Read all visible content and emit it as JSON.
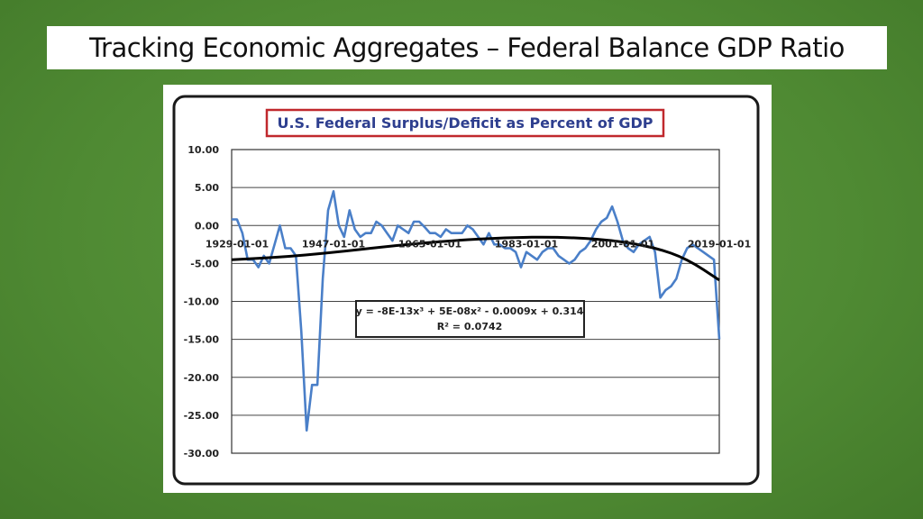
{
  "slide": {
    "title": "Tracking Economic Aggregates – Federal Balance GDP Ratio"
  },
  "colors": {
    "background": "#4f8a33",
    "series_line": "#4a7fc8",
    "trend_line": "#000000",
    "chart_title": "#2e3f8f",
    "title_border": "#c0282d"
  },
  "chart_data": {
    "type": "line",
    "title": "U.S. Federal Surplus/Deficit as Percent of GDP",
    "xlabel": "",
    "ylabel": "",
    "ylim": [
      -30,
      10
    ],
    "y_ticks": [
      "10.00",
      "5.00",
      "0.00",
      "-5.00",
      "-10.00",
      "-15.00",
      "-20.00",
      "-25.00",
      "-30.00"
    ],
    "x_range": [
      1929,
      2020
    ],
    "x_tick_labels": [
      {
        "year": 1929,
        "label": "1929-01-01"
      },
      {
        "year": 1947,
        "label": "1947-01-01"
      },
      {
        "year": 1965,
        "label": "1965-01-01"
      },
      {
        "year": 1983,
        "label": "1983-01-01"
      },
      {
        "year": 2001,
        "label": "2001-01-01"
      },
      {
        "year": 2019,
        "label": "2019-01-01"
      }
    ],
    "grid": true,
    "series": [
      {
        "years": [
          1929,
          1930,
          1931,
          1932,
          1933,
          1934,
          1935,
          1936,
          1937,
          1938,
          1939,
          1940,
          1941,
          1942,
          1943,
          1944,
          1945,
          1946,
          1947,
          1948,
          1949,
          1950,
          1951,
          1952,
          1953,
          1954,
          1955,
          1956,
          1957,
          1958,
          1959,
          1960,
          1961,
          1962,
          1963,
          1964,
          1965,
          1966,
          1967,
          1968,
          1969,
          1970,
          1971,
          1972,
          1973,
          1974,
          1975,
          1976,
          1977,
          1978,
          1979,
          1980,
          1981,
          1982,
          1983,
          1984,
          1985,
          1986,
          1987,
          1988,
          1989,
          1990,
          1991,
          1992,
          1993,
          1994,
          1995,
          1996,
          1997,
          1998,
          1999,
          2000,
          2001,
          2002,
          2003,
          2004,
          2005,
          2006,
          2007,
          2008,
          2009,
          2010,
          2011,
          2012,
          2013,
          2014,
          2015,
          2016,
          2017,
          2018,
          2019,
          2020
        ],
        "values": [
          0.8,
          0.8,
          -1.0,
          -4.5,
          -4.5,
          -5.5,
          -4.0,
          -5.0,
          -2.5,
          0.0,
          -3.0,
          -3.0,
          -4.0,
          -14.0,
          -27.0,
          -21.0,
          -21.0,
          -7.0,
          2.0,
          4.5,
          0.0,
          -1.5,
          2.0,
          -0.5,
          -1.5,
          -1.0,
          -1.0,
          0.5,
          0.0,
          -1.0,
          -2.0,
          0.0,
          -0.5,
          -1.0,
          0.5,
          0.5,
          -0.2,
          -1.0,
          -1.0,
          -1.5,
          -0.5,
          -1.0,
          -1.0,
          -1.0,
          0.0,
          -0.5,
          -1.5,
          -2.5,
          -1.0,
          -2.5,
          -2.5,
          -3.0,
          -3.0,
          -3.5,
          -5.5,
          -3.5,
          -4.0,
          -4.5,
          -3.5,
          -3.0,
          -3.0,
          -4.0,
          -4.5,
          -5.0,
          -4.5,
          -3.5,
          -3.0,
          -2.0,
          -0.5,
          0.5,
          1.0,
          2.5,
          0.5,
          -2.0,
          -3.0,
          -3.5,
          -2.5,
          -2.0,
          -1.5,
          -3.5,
          -9.5,
          -8.5,
          -8.0,
          -7.0,
          -4.5,
          -3.0,
          -2.5,
          -3.0,
          -3.5,
          -4.0,
          -4.5,
          -15.0
        ]
      }
    ],
    "trendline": {
      "equation": "y = -8E-13x³ + 5E-08x² - 0.0009x + 0.314",
      "r_squared": "R² = 0.0742",
      "points": [
        {
          "x": 1929,
          "y": -4.5
        },
        {
          "x": 1940,
          "y": -4.1
        },
        {
          "x": 1950,
          "y": -3.4
        },
        {
          "x": 1960,
          "y": -2.6
        },
        {
          "x": 1970,
          "y": -2.0
        },
        {
          "x": 1980,
          "y": -1.6
        },
        {
          "x": 1990,
          "y": -1.5
        },
        {
          "x": 2000,
          "y": -1.9
        },
        {
          "x": 2008,
          "y": -2.9
        },
        {
          "x": 2014,
          "y": -4.4
        },
        {
          "x": 2020,
          "y": -7.2
        }
      ]
    }
  }
}
